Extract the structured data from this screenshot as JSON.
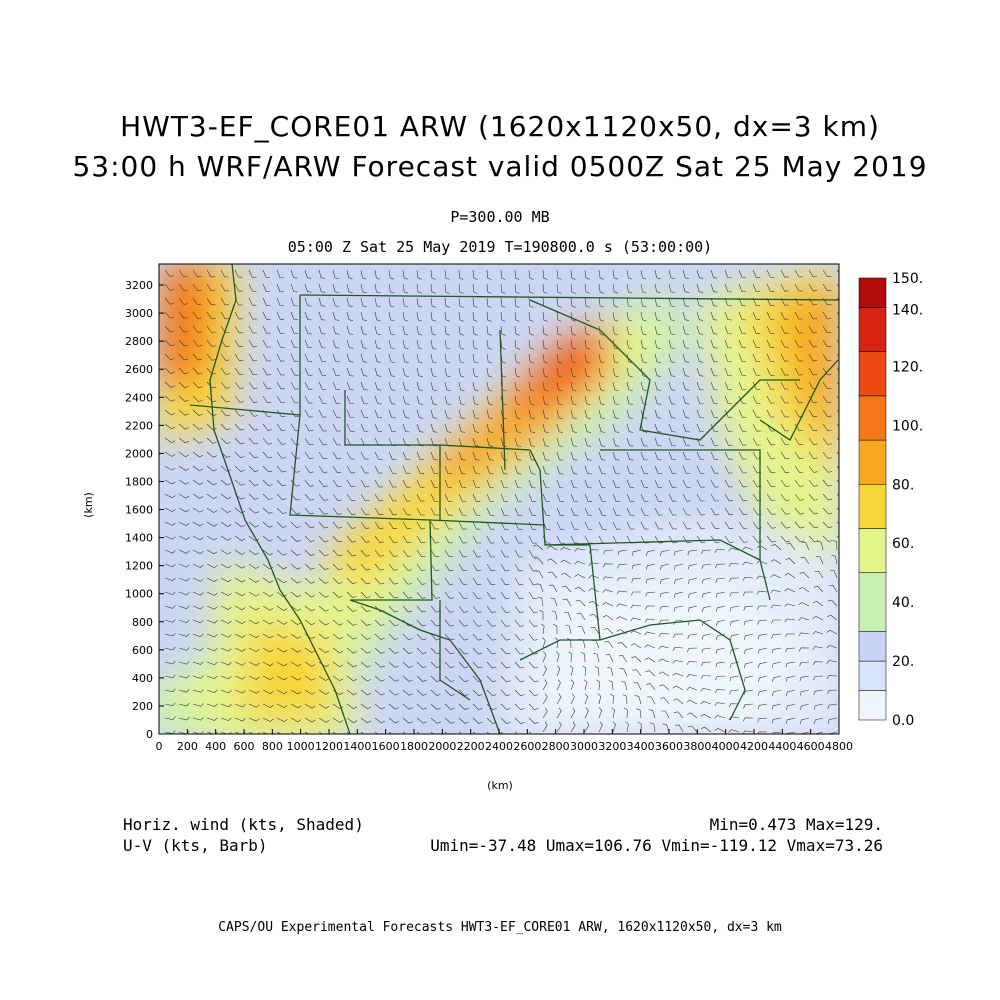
{
  "header": {
    "title_line1": "HWT3-EF_CORE01 ARW (1620x1120x50, dx=3 km)",
    "title_line2": "53:00 h WRF/ARW Forecast valid 0500Z Sat 25 May 2019",
    "level": "P=300.00 MB",
    "time_line": "05:00 Z Sat 25 May 2019    T=190800.0 s (53:00:00)"
  },
  "axes": {
    "x_label": "(km)",
    "y_label": "(km)",
    "x_ticks": [
      "0",
      "200",
      "400",
      "600",
      "800",
      "1000",
      "1200",
      "1400",
      "1600",
      "1800",
      "2000",
      "2200",
      "2400",
      "2600",
      "2800",
      "3000",
      "3200",
      "3400",
      "3600",
      "3800",
      "4000",
      "4200",
      "4400",
      "4600",
      "4800"
    ],
    "y_ticks": [
      "0",
      "200",
      "400",
      "600",
      "800",
      "1000",
      "1200",
      "1400",
      "1600",
      "1800",
      "2000",
      "2200",
      "2400",
      "2600",
      "2800",
      "3000",
      "3200"
    ],
    "x_range": [
      0,
      4800
    ],
    "y_range": [
      0,
      3350
    ]
  },
  "colorbar": {
    "labels": [
      "0.0",
      "20.",
      "40.",
      "60.",
      "80.",
      "100.",
      "120.",
      "140.",
      "150."
    ],
    "colors": [
      "#eef6fc",
      "#d8e4fa",
      "#c9d2f5",
      "#c8f0b4",
      "#e4f48c",
      "#f8d638",
      "#f7a820",
      "#f47818",
      "#ee4a14",
      "#d62410",
      "#b30c0c"
    ]
  },
  "footer": {
    "field_name": "Horiz. wind (kts, Shaded)",
    "barb_name": "U-V (kts, Barb)",
    "minmax": "Min=0.473 Max=129.",
    "uv_stats": "Umin=-37.48 Umax=106.76 Vmin=-119.12 Vmax=73.26",
    "credit": "CAPS/OU Experimental Forecasts  HWT3-EF_CORE01 ARW, 1620x1120x50, dx=3 km"
  }
}
